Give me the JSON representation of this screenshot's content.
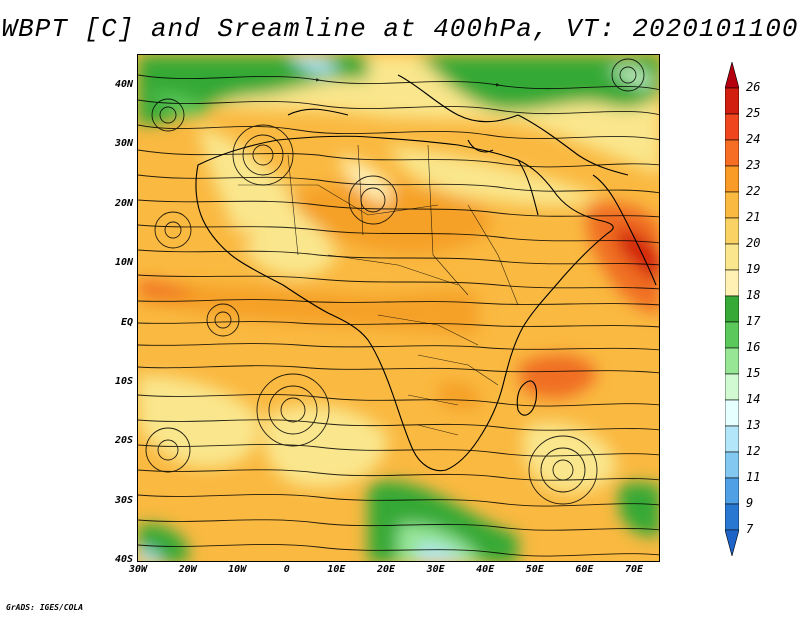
{
  "title": "WBPT [C] and Sreamline at 400hPa, VT: 2020101100",
  "credit": "GrADS: IGES/COLA",
  "map": {
    "region": "Africa and surrounding oceans",
    "lat_labels": [
      "40N",
      "30N",
      "20N",
      "10N",
      "EQ",
      "10S",
      "20S",
      "30S",
      "40S"
    ],
    "lon_labels": [
      "30W",
      "20W",
      "10W",
      "0",
      "10E",
      "20E",
      "30E",
      "40E",
      "50E",
      "60E",
      "70E"
    ],
    "lat_range": [
      -40,
      44
    ],
    "lon_range": [
      -30,
      74
    ]
  },
  "colorbar": {
    "levels": [
      "26",
      "25",
      "24",
      "23",
      "22",
      "21",
      "20",
      "19",
      "18",
      "17",
      "16",
      "15",
      "14",
      "13",
      "12",
      "11",
      "9",
      "7"
    ],
    "colors": [
      "#b4000f",
      "#d21e0f",
      "#f0461e",
      "#f56e23",
      "#fa9b28",
      "#fab941",
      "#fad264",
      "#fae68c",
      "#fff0b4",
      "#36a936",
      "#5ac85a",
      "#96e696",
      "#d2fad2",
      "#e6ffff",
      "#b4e6fa",
      "#82c8f0",
      "#50a0e6",
      "#2878d2",
      "#1e64c8"
    ]
  },
  "shading_palette": {
    "yellow": "#fae68c",
    "lightyellow": "#fff0b4",
    "orange": "#fab941",
    "darkorange": "#f5a028",
    "red": "#f06e23",
    "green": "#36a936",
    "lightgreen": "#96e696",
    "blue": "#b4e6fa"
  }
}
